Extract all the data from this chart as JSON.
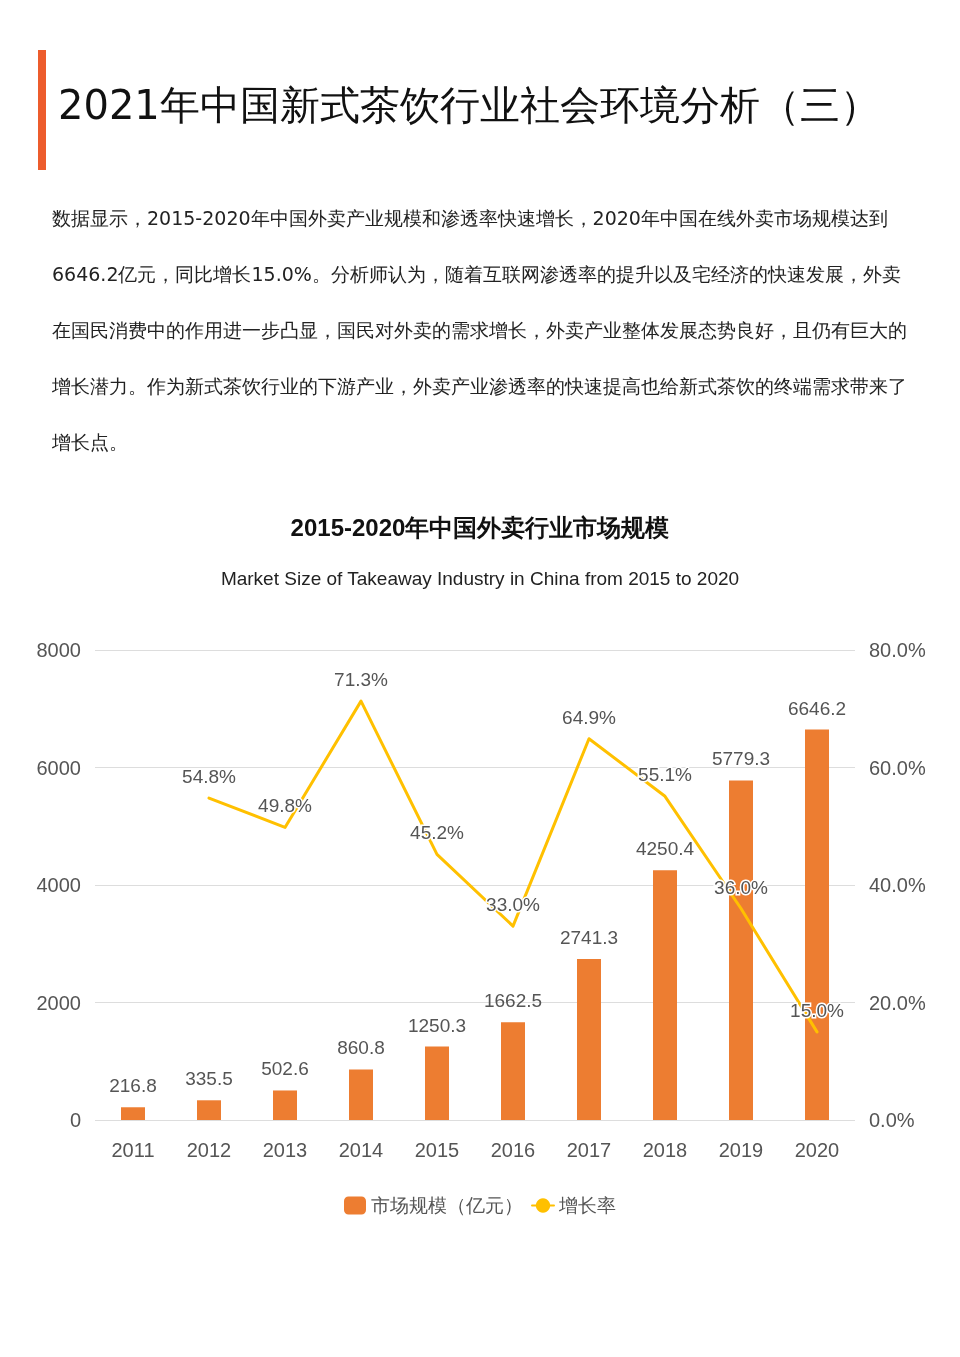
{
  "chart_data": {
    "type": "bar",
    "title": "2015-2020年中国外卖行业市场规模",
    "subtitle": "Market Size of Takeaway Industry in China from 2015 to 2020",
    "annotations": [
      "2021年中国新式茶饮行业社会环境分析（三）",
      "数据显示，2015-2020年中国外卖产业规模和渗透率快速增长，2020年中国在线外卖市场规模达到6646.2亿元，同比增长15.0%。分析师认为，随着互联网渗透率的提升以及宅经济的快速发展，外卖在国民消费中的作用进一步凸显，国民对外卖的需求增长，外卖产业整体发展态势良好，且仍有巨大的增长潜力。作为新式茶饮行业的下游产业，外卖产业渗透率的快速提高也给新式茶饮的终端需求带来了增长点。"
    ],
    "categories": [
      "2011",
      "2012",
      "2013",
      "2014",
      "2015",
      "2016",
      "2017",
      "2018",
      "2019",
      "2020"
    ],
    "series": [
      {
        "name": "市场规模（亿元）",
        "color": "#ed7d31",
        "values": [
          216.8,
          335.5,
          502.6,
          860.8,
          1250.3,
          1662.5,
          2741.3,
          4250.4,
          5779.3,
          6646.2
        ],
        "value_labels": [
          "216.8",
          "335.5",
          "502.6",
          "860.8",
          "1250.3",
          "1662.5",
          "2741.3",
          "4250.4",
          "5779.3",
          "6646.2"
        ]
      },
      {
        "name": "增长率",
        "type": "line",
        "axis": "y2",
        "color": "#ffc000",
        "values": [
          null,
          54.8,
          49.8,
          71.3,
          45.2,
          33.0,
          64.9,
          55.1,
          36.0,
          15.0
        ],
        "value_labels": [
          null,
          "54.8%",
          "49.8%",
          "71.3%",
          "45.2%",
          "33.0%",
          "64.9%",
          "55.1%",
          "36.0%",
          "15.0%"
        ]
      }
    ],
    "ylim": [
      0,
      8000
    ],
    "yticks": [
      0,
      2000,
      4000,
      6000,
      8000
    ],
    "y2lim": [
      0,
      80
    ],
    "y2ticks": [
      {
        "value": 0,
        "label": "0.0%"
      },
      {
        "value": 20,
        "label": "20.0%"
      },
      {
        "value": 40,
        "label": "40.0%"
      },
      {
        "value": 60,
        "label": "60.0%"
      },
      {
        "value": 80,
        "label": "80.0%"
      }
    ],
    "grid": "y",
    "legend": "bottom",
    "marker": "none",
    "line_style": "solid"
  }
}
